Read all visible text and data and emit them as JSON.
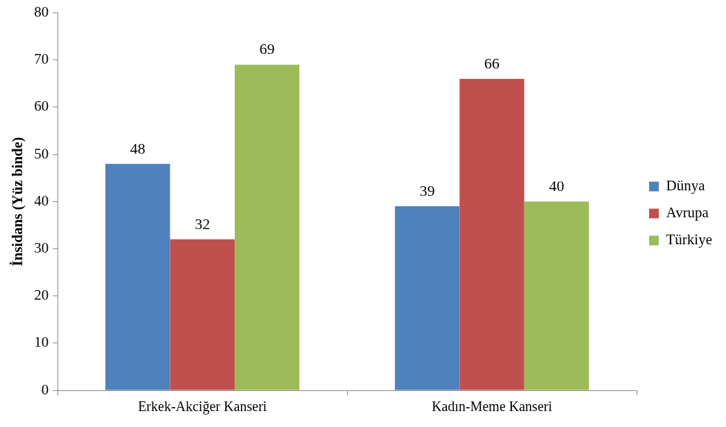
{
  "chart_data": {
    "type": "bar",
    "ylabel": "İnsidans (Yüz binde)",
    "categories": [
      "Erkek-Akciğer Kanseri",
      "Kadın-Meme Kanseri"
    ],
    "series": [
      {
        "name": "Dünya",
        "color": "#4f81bd",
        "values": [
          48,
          39
        ]
      },
      {
        "name": "Avrupa",
        "color": "#c0504d",
        "values": [
          32,
          66
        ]
      },
      {
        "name": "Türkiye",
        "color": "#9bbb59",
        "values": [
          69,
          40
        ]
      }
    ],
    "ylim": [
      0,
      80
    ],
    "yticks": [
      0,
      10,
      20,
      30,
      40,
      50,
      60,
      70,
      80
    ],
    "grid": false,
    "legend": "right",
    "data_labels": true
  }
}
